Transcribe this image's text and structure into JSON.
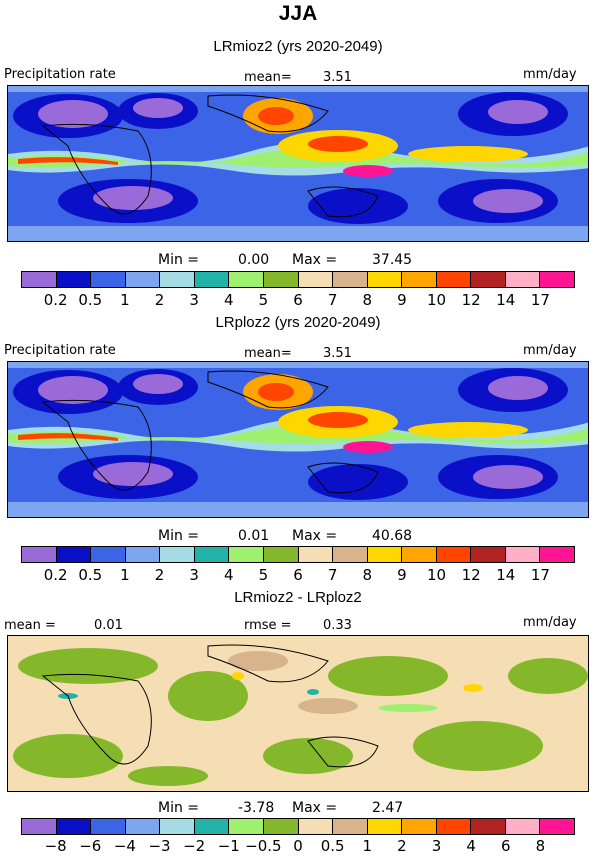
{
  "title": "JJA",
  "units_label": "mm/day",
  "panels": [
    {
      "title": "LRmioz2 (yrs 2020-2049)",
      "left_label": "Precipitation rate",
      "mean_label": "mean=",
      "mean_value": "3.51",
      "units": "mm/day",
      "min_label": "Min =",
      "min_value": "0.00",
      "max_label": "Max =",
      "max_value": "37.45",
      "colorbar": {
        "colors": [
          "#9a6bd8",
          "#0a10c8",
          "#3c64e6",
          "#7ea6f0",
          "#a6dce6",
          "#22b3a8",
          "#9ef06e",
          "#84b82a",
          "#f5deb3",
          "#d7b48c",
          "#ffd700",
          "#ffa500",
          "#ff4500",
          "#b22222",
          "#ffb0c8",
          "#ff1493"
        ],
        "ticks": [
          "0.2",
          "0.5",
          "1",
          "2",
          "3",
          "4",
          "5",
          "6",
          "7",
          "8",
          "9",
          "10",
          "12",
          "14",
          "17"
        ]
      }
    },
    {
      "title": "LRploz2 (yrs 2020-2049)",
      "left_label": "Precipitation rate",
      "mean_label": "mean=",
      "mean_value": "3.51",
      "units": "mm/day",
      "min_label": "Min =",
      "min_value": "0.01",
      "max_label": "Max =",
      "max_value": "40.68",
      "colorbar": {
        "colors": [
          "#9a6bd8",
          "#0a10c8",
          "#3c64e6",
          "#7ea6f0",
          "#a6dce6",
          "#22b3a8",
          "#9ef06e",
          "#84b82a",
          "#f5deb3",
          "#d7b48c",
          "#ffd700",
          "#ffa500",
          "#ff4500",
          "#b22222",
          "#ffb0c8",
          "#ff1493"
        ],
        "ticks": [
          "0.2",
          "0.5",
          "1",
          "2",
          "3",
          "4",
          "5",
          "6",
          "7",
          "8",
          "9",
          "10",
          "12",
          "14",
          "17"
        ]
      }
    },
    {
      "title": "LRmioz2 - LRploz2",
      "left_label": "mean =",
      "left_value": "0.01",
      "rmse_label": "rmse =",
      "rmse_value": "0.33",
      "units": "mm/day",
      "min_label": "Min =",
      "min_value": "-3.78",
      "max_label": "Max =",
      "max_value": "2.47",
      "colorbar": {
        "colors": [
          "#9a6bd8",
          "#0a10c8",
          "#3c64e6",
          "#7ea6f0",
          "#a6dce6",
          "#22b3a8",
          "#9ef06e",
          "#84b82a",
          "#f5deb3",
          "#d7b48c",
          "#ffd700",
          "#ffa500",
          "#ff4500",
          "#b22222",
          "#ffb0c8",
          "#ff1493"
        ],
        "ticks": [
          "−8",
          "−6",
          "−4",
          "−3",
          "−2",
          "−1",
          "−0.5",
          "0",
          "0.5",
          "1",
          "2",
          "3",
          "4",
          "6",
          "8"
        ]
      }
    }
  ]
}
